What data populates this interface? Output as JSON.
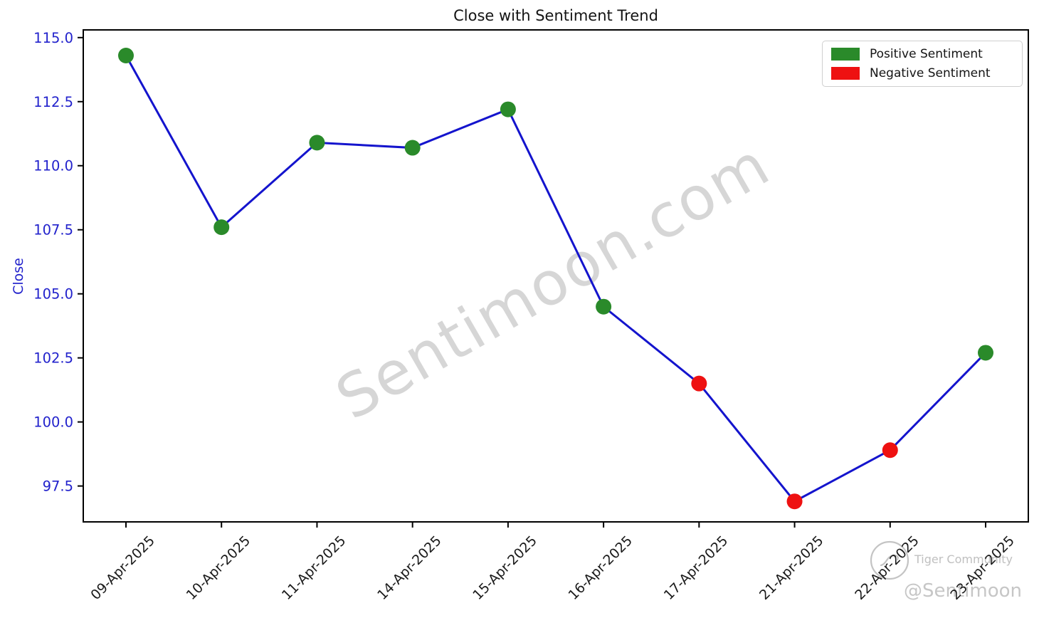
{
  "title": "Close with Sentiment Trend",
  "ylabel": "Close",
  "legend": [
    {
      "label": "Positive Sentiment",
      "color": "#2a8a2a"
    },
    {
      "label": "Negative Sentiment",
      "color": "#ee1111"
    }
  ],
  "watermarks": {
    "center": "Sentimoon.com",
    "brand_name": "Tiger Community",
    "handle": "@Sentimoon"
  },
  "chart_data": {
    "type": "line",
    "title": "Close with Sentiment Trend",
    "xlabel": "",
    "ylabel": "Close",
    "categories": [
      "09-Apr-2025",
      "10-Apr-2025",
      "11-Apr-2025",
      "14-Apr-2025",
      "15-Apr-2025",
      "16-Apr-2025",
      "17-Apr-2025",
      "21-Apr-2025",
      "22-Apr-2025",
      "23-Apr-2025"
    ],
    "series": [
      {
        "name": "Close",
        "values": [
          114.3,
          107.6,
          110.9,
          110.7,
          112.2,
          104.5,
          101.5,
          96.9,
          98.9,
          102.7
        ]
      }
    ],
    "point_sentiment": [
      "positive",
      "positive",
      "positive",
      "positive",
      "positive",
      "positive",
      "negative",
      "negative",
      "negative",
      "positive"
    ],
    "line_color": "#1414cd",
    "positive_color": "#2a8a2a",
    "negative_color": "#ee1111",
    "tick_label_color": "#2222cc",
    "x_tick_label_color": "#1a1a1a",
    "yticks": [
      97.5,
      100.0,
      102.5,
      105.0,
      107.5,
      110.0,
      112.5,
      115.0
    ],
    "ylim": [
      96.1,
      115.3
    ],
    "grid": false,
    "legend_position": "upper right",
    "x_tick_rotation": 45
  }
}
